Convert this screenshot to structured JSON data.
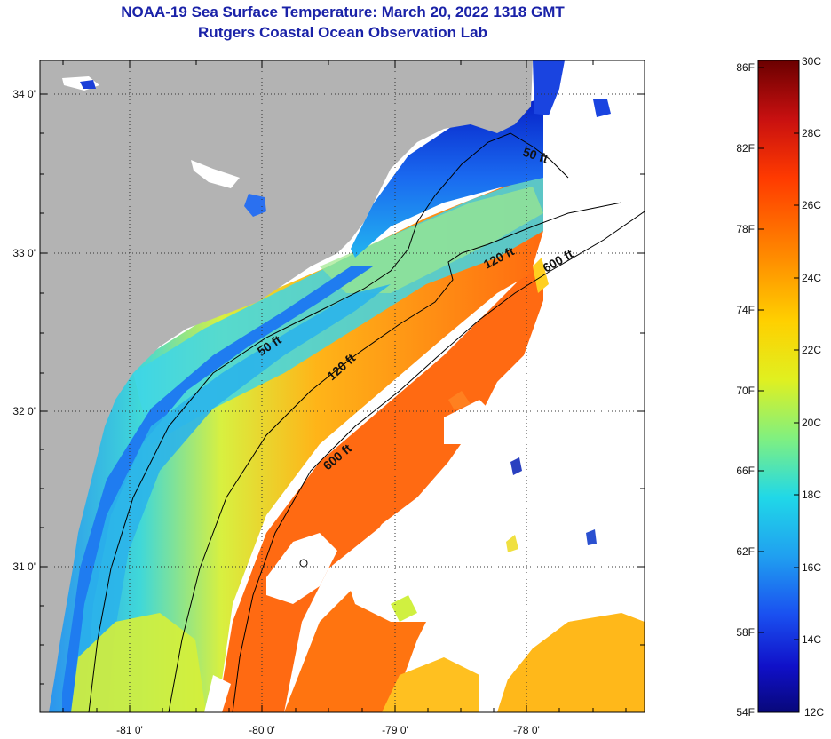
{
  "title": {
    "line1": "NOAA-19 Sea Surface Temperature:  March 20, 2022 1318 GMT",
    "line2": "Rutgers Coastal Ocean Observation Lab"
  },
  "map": {
    "longitude_ticks": [
      "-81 0'",
      "-80 0'",
      "-79 0'",
      "-78 0'"
    ],
    "latitude_ticks": [
      "34 0'",
      "33 0'",
      "32 0'",
      "31 0'"
    ],
    "contours": {
      "inner_50": "50 ft",
      "inner_120_north": "120 ft",
      "shelf_600_north": "600 ft",
      "coastal_50": "50 ft",
      "mid_120": "120 ft",
      "shelf_600_south": "600 ft"
    },
    "colors": {
      "land": "#b3b3b3",
      "cloud": "#ffffff",
      "contour": "#000000",
      "grid": "#333333"
    }
  },
  "colorbar": {
    "fahrenheit_ticks": [
      "86F",
      "82F",
      "78F",
      "74F",
      "70F",
      "66F",
      "62F",
      "58F",
      "54F"
    ],
    "celsius_ticks": [
      "30C",
      "28C",
      "26C",
      "24C",
      "22C",
      "20C",
      "18C",
      "16C",
      "14C",
      "12C"
    ],
    "gradient": [
      "#6b0000",
      "#c81010",
      "#ff3a00",
      "#ff8a00",
      "#ffd000",
      "#e0f020",
      "#80f080",
      "#20d8e8",
      "#20a0f0",
      "#1a50f0",
      "#1010c8",
      "#08087a"
    ]
  }
}
